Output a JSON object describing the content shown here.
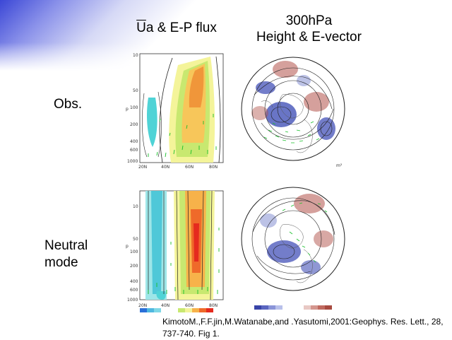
{
  "titles": {
    "left_bar": "U",
    "left_rest": "a & E-P flux",
    "right_line1": "300hPa",
    "right_line2": "Height & E-vector"
  },
  "rows": {
    "obs": "Obs.",
    "neutral_line1": "Neutral",
    "neutral_line2": "mode"
  },
  "citation": "KimotoM.,F.F.jin,M.Watanabe,and .Yasutomi,2001:Geophys. Res. Lett., 28, 737-740. Fig 1.",
  "section_panel": {
    "pressure_ticks": [
      "10",
      "50",
      "100",
      "200",
      "400",
      "600",
      "1000"
    ],
    "lat_ticks": [
      "20N",
      "40N",
      "60N",
      "80N"
    ],
    "axis_label": "p"
  },
  "colors": {
    "negative_light": "#4fd3d6",
    "positive_mid": "#f2a23a",
    "positive_strong": "#e52a1e",
    "map_negative": "#4452b8",
    "map_positive": "#b2524a",
    "vector": "#19c02a"
  }
}
